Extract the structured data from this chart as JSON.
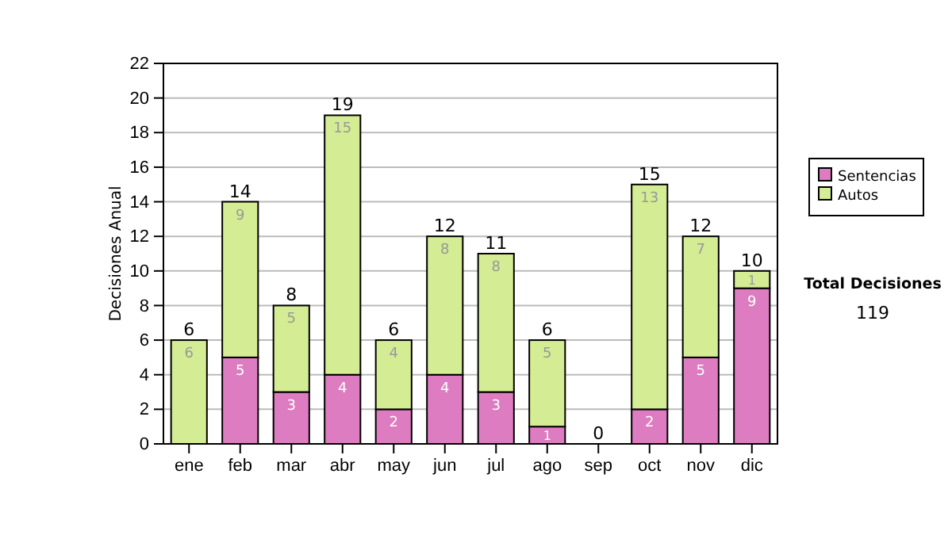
{
  "chart_data": {
    "type": "bar",
    "stacked": true,
    "ylabel": "Decisiones Anual",
    "categories": [
      "ene",
      "feb",
      "mar",
      "abr",
      "may",
      "jun",
      "jul",
      "ago",
      "sep",
      "oct",
      "nov",
      "dic"
    ],
    "series": [
      {
        "name": "Sentencias",
        "color": "#dd7cc0",
        "values": [
          0,
          5,
          3,
          4,
          2,
          4,
          3,
          1,
          0,
          2,
          5,
          9
        ],
        "value_labels": [
          null,
          "5",
          "3",
          "4",
          "2",
          "4",
          "3",
          "1",
          null,
          "2",
          "5",
          "9"
        ]
      },
      {
        "name": "Autos",
        "color": "#d4ec94",
        "values": [
          6,
          9,
          5,
          15,
          4,
          8,
          8,
          5,
          0,
          13,
          7,
          1
        ],
        "value_labels": [
          "6",
          "9",
          "5",
          "15",
          "4",
          "8",
          "8",
          "5",
          null,
          "13",
          "7",
          "1"
        ]
      }
    ],
    "totals": [
      "6",
      "14",
      "8",
      "19",
      "6",
      "12",
      "11",
      "6",
      "0",
      "15",
      "12",
      "10"
    ],
    "ylim": [
      0,
      22
    ],
    "yticks": [
      0,
      2,
      4,
      6,
      8,
      10,
      12,
      14,
      16,
      18,
      20,
      22
    ],
    "grid": "y",
    "legend": "right",
    "annotations": [
      "Total Decisiones",
      "119"
    ]
  }
}
